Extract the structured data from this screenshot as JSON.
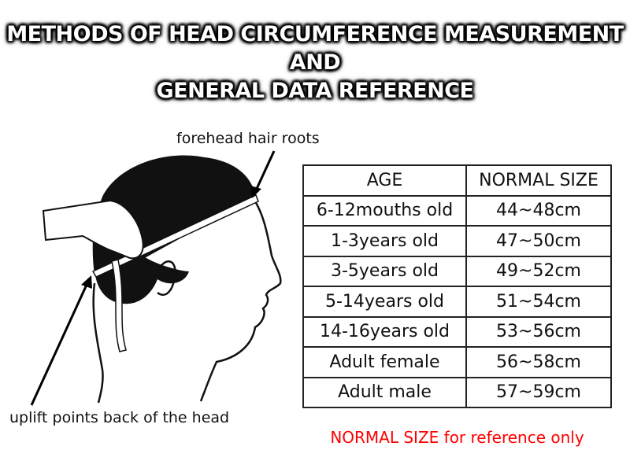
{
  "title": {
    "line1": "METHODS OF HEAD CIRCUMFERENCE MEASUREMENT",
    "line2": "AND",
    "line3": "GENERAL DATA REFERENCE"
  },
  "labels": {
    "forehead": "forehead hair roots",
    "back": "uplift points back of the head"
  },
  "table": {
    "headers": [
      "AGE",
      "NORMAL SIZE"
    ],
    "rows": [
      [
        "6-12mouths old",
        "44~48cm"
      ],
      [
        "1-3years old",
        "47~50cm"
      ],
      [
        "3-5years old",
        "49~52cm"
      ],
      [
        "5-14years old",
        "51~54cm"
      ],
      [
        "14-16years old",
        "53~56cm"
      ],
      [
        "Adult female",
        "56~58cm"
      ],
      [
        "Adult male",
        "57~59cm"
      ]
    ]
  },
  "note": "NORMAL SIZE for reference only",
  "colors": {
    "note": "#ff0000",
    "title_text": "#ffffff",
    "title_outline": "#000000"
  }
}
